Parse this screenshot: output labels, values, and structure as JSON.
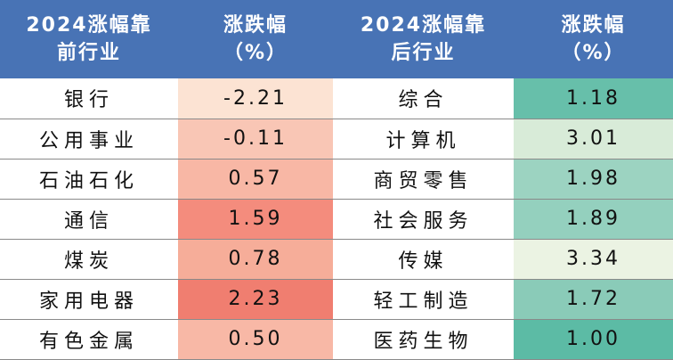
{
  "headers": {
    "left_name": [
      "2024涨幅靠",
      "前行业"
    ],
    "left_value": [
      "涨跌幅",
      "（%）"
    ],
    "right_name": [
      "2024涨幅靠",
      "后行业"
    ],
    "right_value": [
      "涨跌幅",
      "（%）"
    ]
  },
  "rows": [
    {
      "left_name": "银行",
      "left_value": "-2.21",
      "left_color": "#fce3d3",
      "right_name": "综合",
      "right_value": "1.18",
      "right_color": "#67bfaa"
    },
    {
      "left_name": "公用事业",
      "left_value": "-0.11",
      "left_color": "#f9c6b5",
      "right_name": "计算机",
      "right_value": "3.01",
      "right_color": "#d8ebd8"
    },
    {
      "left_name": "石油石化",
      "left_value": "0.57",
      "left_color": "#f8b7a5",
      "right_name": "商贸零售",
      "right_value": "1.98",
      "right_color": "#9cd3c1"
    },
    {
      "left_name": "通信",
      "left_value": "1.59",
      "left_color": "#f48c7d",
      "right_name": "社会服务",
      "right_value": "1.89",
      "right_color": "#94d0be"
    },
    {
      "left_name": "煤炭",
      "left_value": "0.78",
      "left_color": "#f6ad99",
      "right_name": "传媒",
      "right_value": "3.34",
      "right_color": "#ebf3e3"
    },
    {
      "left_name": "家用电器",
      "left_value": "2.23",
      "left_color": "#f07e70",
      "right_name": "轻工制造",
      "right_value": "1.72",
      "right_color": "#8acbb8"
    },
    {
      "left_name": "有色金属",
      "left_value": "0.50",
      "left_color": "#f8b8a6",
      "right_name": "医药生物",
      "right_value": "1.00",
      "right_color": "#5cbba5"
    }
  ]
}
